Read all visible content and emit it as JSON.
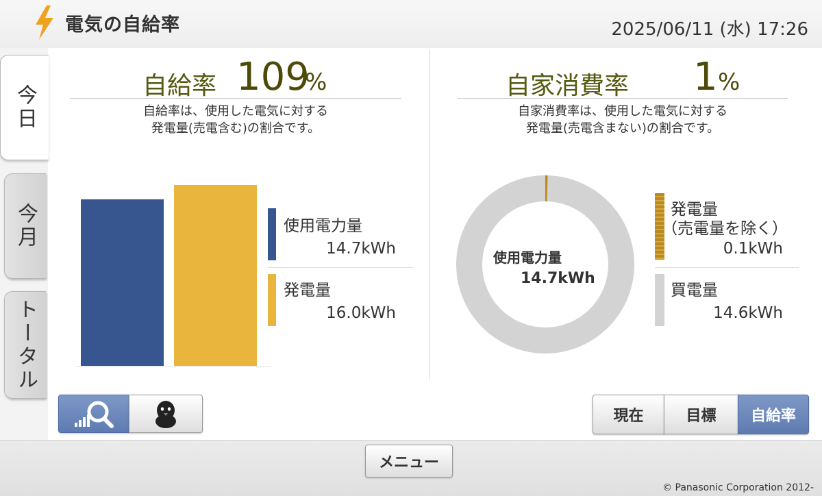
{
  "header": {
    "title": "電気の自給率",
    "datetime": "2025/06/11 (水) 17:26"
  },
  "side_tabs": [
    {
      "label": "今日",
      "active": true
    },
    {
      "label": "今月",
      "active": false
    },
    {
      "label": "トータル",
      "active": false
    }
  ],
  "self_sufficiency": {
    "label": "自給率",
    "value": "109",
    "unit": "%",
    "desc_line1": "自給率は、使用した電気に対する",
    "desc_line2": "発電量(売電含む)の割合です。",
    "bars": [
      {
        "name": "使用電力量",
        "value": 14.7,
        "value_label": "14.7kWh",
        "color": "#37558e"
      },
      {
        "name": "発電量",
        "value": 16.0,
        "value_label": "16.0kWh",
        "color": "#e9b53c"
      }
    ]
  },
  "self_consumption": {
    "label": "自家消費率",
    "value": "1",
    "unit": "%",
    "desc_line1": "自家消費率は、使用した電気に対する",
    "desc_line2": "発電量(売電含まない)の割合です。",
    "donut_center_label": "使用電力量",
    "donut_center_value": "14.7kWh",
    "segments": [
      {
        "name": "発電量",
        "sub": "（売電量を除く）",
        "value": 0.1,
        "value_label": "0.1kWh",
        "color": "#b98a20"
      },
      {
        "name": "買電量",
        "sub": "",
        "value": 14.6,
        "value_label": "14.6kWh",
        "color": "#d3d3d3"
      }
    ]
  },
  "view_buttons": [
    {
      "name": "graph-search",
      "icon": "graph-search-icon",
      "active": true
    },
    {
      "name": "character",
      "icon": "penguin-icon",
      "active": false
    }
  ],
  "mode_buttons": [
    {
      "label": "現在",
      "active": false
    },
    {
      "label": "目標",
      "active": false
    },
    {
      "label": "自給率",
      "active": true
    }
  ],
  "footer": {
    "menu_label": "メニュー",
    "copyright": "© Panasonic Corporation 2012-"
  },
  "colors": {
    "usage": "#37558e",
    "generation": "#e9b53c",
    "self_consumed": "#b98a20",
    "purchased": "#d3d3d3",
    "accent_text": "#4d4a08",
    "active_button": "#6a86bb"
  }
}
